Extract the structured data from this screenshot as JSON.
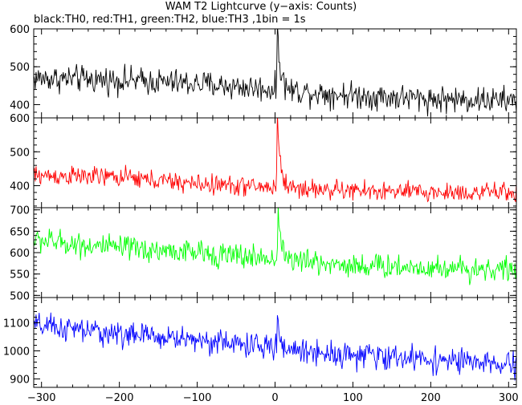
{
  "chart_data": {
    "type": "line",
    "title": "WAM T2 Lightcurve (y−axis: Counts)",
    "subtitle": "black:TH0, red:TH1, green:TH2, blue:TH3 ,1bin = 1s",
    "x_range": [
      -310,
      310
    ],
    "x_ticks": [
      -300,
      -200,
      -100,
      0,
      100,
      200,
      300
    ],
    "bin_seconds": 1,
    "panels": [
      {
        "name": "TH0",
        "color": "#000000",
        "ylim": [
          365,
          600
        ],
        "y_ticks": [
          400,
          500,
          600
        ],
        "baseline": [
          [
            -310,
            470
          ],
          [
            -200,
            465
          ],
          [
            -100,
            455
          ],
          [
            0,
            440
          ],
          [
            100,
            425
          ],
          [
            200,
            415
          ],
          [
            310,
            410
          ]
        ],
        "noise": 22,
        "spike": {
          "x": 3,
          "peak": 600,
          "decay": 4
        }
      },
      {
        "name": "TH1",
        "color": "#ff0000",
        "ylim": [
          335,
          600
        ],
        "y_ticks": [
          400,
          500,
          600
        ],
        "baseline": [
          [
            -310,
            430
          ],
          [
            -200,
            425
          ],
          [
            -100,
            405
          ],
          [
            0,
            395
          ],
          [
            100,
            385
          ],
          [
            200,
            380
          ],
          [
            310,
            380
          ]
        ],
        "noise": 18,
        "spike": {
          "x": 3,
          "peak": 600,
          "decay": 4
        }
      },
      {
        "name": "TH2",
        "color": "#00ff00",
        "ylim": [
          495,
          705
        ],
        "y_ticks": [
          500,
          550,
          600,
          650,
          700
        ],
        "baseline": [
          [
            -310,
            630
          ],
          [
            -200,
            610
          ],
          [
            -100,
            600
          ],
          [
            0,
            585
          ],
          [
            100,
            570
          ],
          [
            200,
            565
          ],
          [
            310,
            560
          ]
        ],
        "noise": 18,
        "spike": {
          "x": 4,
          "peak": 705,
          "decay": 4
        }
      },
      {
        "name": "TH3",
        "color": "#0000ff",
        "ylim": [
          870,
          1190
        ],
        "y_ticks": [
          900,
          1000,
          1100
        ],
        "baseline": [
          [
            -310,
            1090
          ],
          [
            -200,
            1060
          ],
          [
            -100,
            1040
          ],
          [
            0,
            1010
          ],
          [
            100,
            985
          ],
          [
            200,
            970
          ],
          [
            310,
            945
          ]
        ],
        "noise": 28,
        "spike": {
          "x": 3,
          "peak": 1120,
          "decay": 3
        }
      }
    ]
  }
}
